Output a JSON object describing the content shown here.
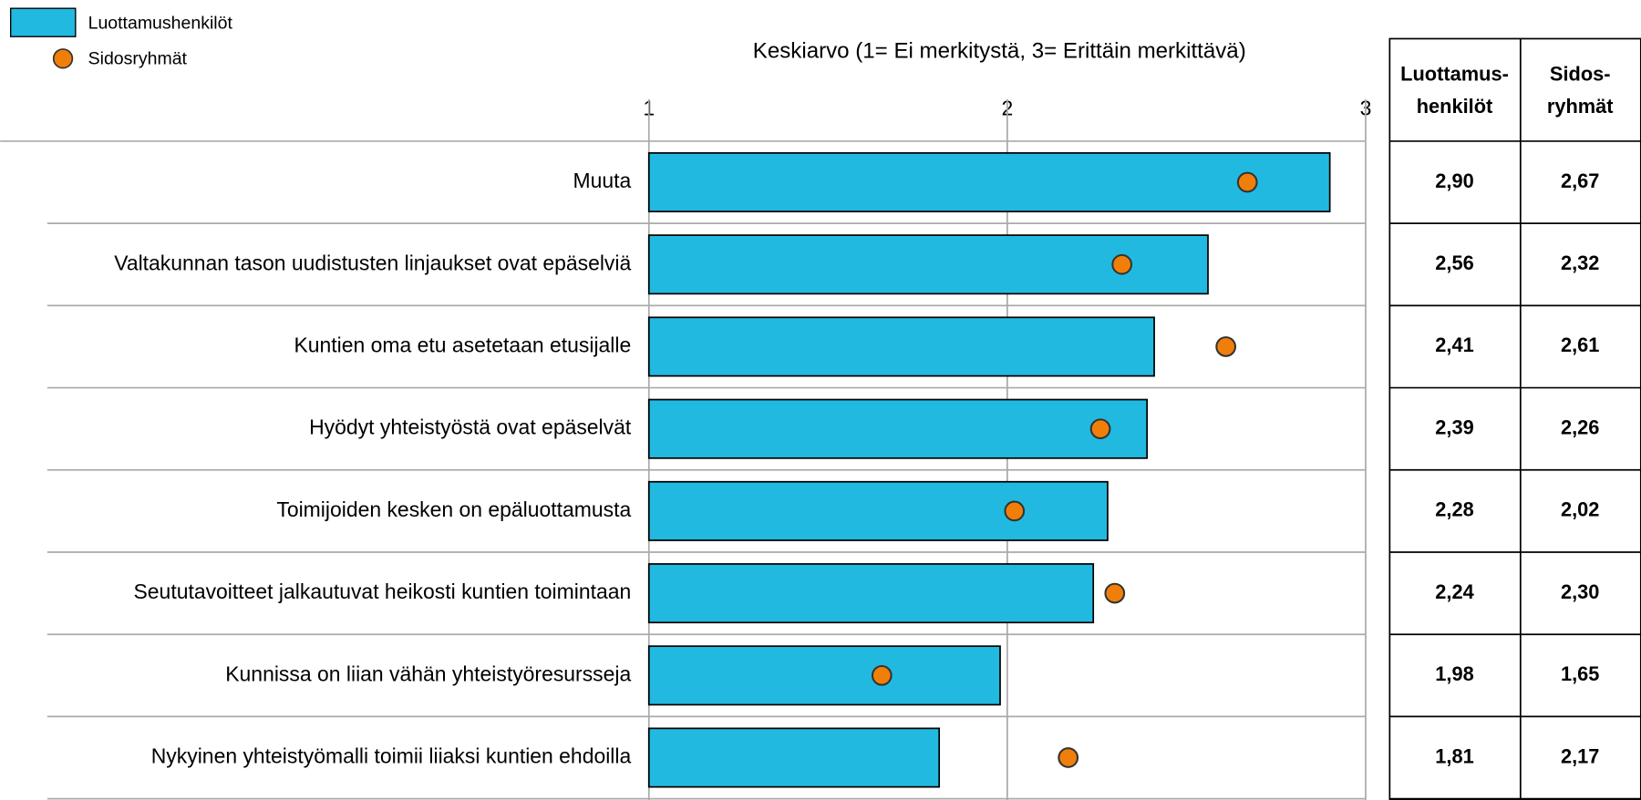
{
  "chart_data": {
    "type": "bar-dot",
    "axis_title": "Keskiarvo (1= Ei merkitystä, 3= Erittäin merkittävä)",
    "categories": [
      "Muuta",
      "Valtakunnan tason uudistusten linjaukset ovat epäselviä",
      "Kuntien oma etu asetetaan etusijalle",
      "Hyödyt yhteistyöstä ovat epäselvät",
      "Toimijoiden kesken on epäluottamusta",
      "Seututavoitteet jalkautuvat heikosti kuntien toimintaan",
      "Kunnissa on liian vähän yhteistyöresursseja",
      "Nykyinen yhteistyömalli toimii liiaksi kuntien ehdoilla"
    ],
    "series": [
      {
        "name": "Luottamushenkilöt",
        "color": "#22b9e0",
        "values": [
          2.9,
          2.56,
          2.41,
          2.39,
          2.28,
          2.24,
          1.98,
          1.81
        ],
        "value_labels": [
          "2,90",
          "2,56",
          "2,41",
          "2,39",
          "2,28",
          "2,24",
          "1,98",
          "1,81"
        ],
        "header": [
          "Luottamus-",
          "henkilöt"
        ]
      },
      {
        "name": "Sidosryhmät",
        "color": "#f07f09",
        "values": [
          2.67,
          2.32,
          2.61,
          2.26,
          2.02,
          2.3,
          1.65,
          2.17
        ],
        "value_labels": [
          "2,67",
          "2,32",
          "2,61",
          "2,26",
          "2,02",
          "2,30",
          "1,65",
          "2,17"
        ],
        "header": [
          "Sidos-",
          "ryhmät"
        ]
      }
    ],
    "xlim": [
      1,
      3
    ],
    "xticks": [
      1,
      2,
      3
    ],
    "grid": true,
    "legend": "top-left"
  }
}
